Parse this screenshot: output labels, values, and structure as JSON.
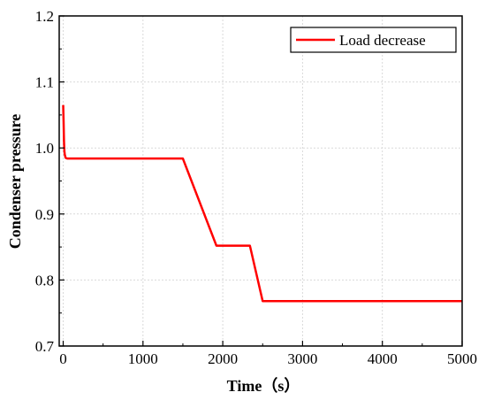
{
  "chart_data": {
    "type": "line",
    "xlabel": "Time（s）",
    "ylabel": "Condenser pressure",
    "xlim": [
      -50,
      5000
    ],
    "ylim": [
      0.7,
      1.2
    ],
    "xticks": [
      0,
      1000,
      2000,
      3000,
      4000,
      5000
    ],
    "xtick_labels": [
      "0",
      "1000",
      "2000",
      "3000",
      "4000",
      "5000"
    ],
    "yticks": [
      0.7,
      0.8,
      0.9,
      1.0,
      1.1,
      1.2
    ],
    "ytick_labels": [
      "0.7",
      "0.8",
      "0.9",
      "1.0",
      "1.1",
      "1.2"
    ],
    "grid": true,
    "legend_position": "top-right",
    "series": [
      {
        "name": "Load decrease",
        "color": "#ff0000",
        "x": [
          0,
          5,
          10,
          15,
          20,
          30,
          50,
          100,
          200,
          1500,
          1920,
          2340,
          2500,
          5000
        ],
        "y": [
          1.065,
          1.04,
          1.01,
          0.995,
          0.99,
          0.985,
          0.984,
          0.984,
          0.984,
          0.984,
          0.852,
          0.852,
          0.768,
          0.768
        ]
      }
    ]
  }
}
